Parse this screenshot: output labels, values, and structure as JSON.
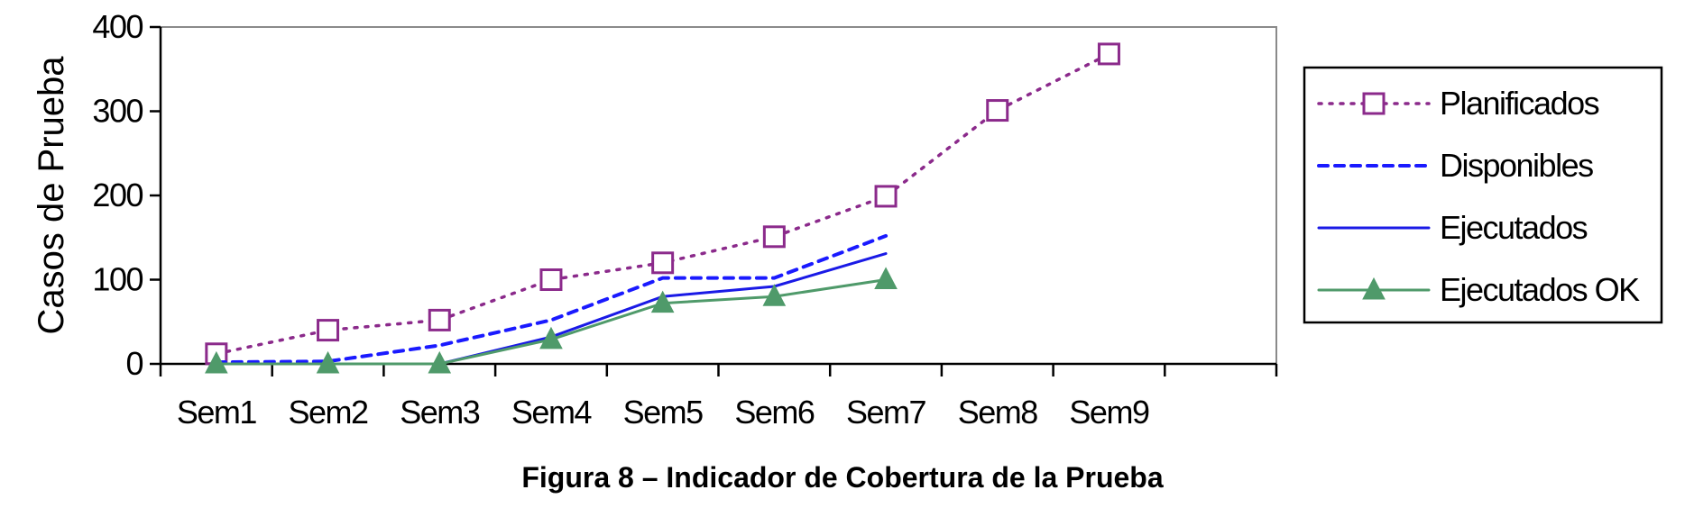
{
  "caption": "Figura 8 – Indicador de Cobertura de la Prueba",
  "chart_data": {
    "type": "line",
    "categories": [
      "Sem1",
      "Sem2",
      "Sem3",
      "Sem4",
      "Sem5",
      "Sem6",
      "Sem7",
      "Sem8",
      "Sem9"
    ],
    "category_slots": 10,
    "ylabel": "Casos de Prueba",
    "xlabel": "",
    "ylim": [
      0,
      400
    ],
    "yticks": [
      0,
      100,
      200,
      300,
      400
    ],
    "grid": false,
    "legend_position": "right",
    "series": [
      {
        "name": "Planificados",
        "color": "#8b2a8b",
        "dash": "dotted",
        "marker": "square",
        "values": [
          12,
          40,
          52,
          100,
          120,
          151,
          199,
          301,
          368
        ]
      },
      {
        "name": "Disponibles",
        "color": "#1a1aff",
        "dash": "dashed",
        "marker": "none",
        "values": [
          2,
          3,
          22,
          52,
          102,
          102,
          152,
          null,
          null
        ]
      },
      {
        "name": "Ejecutados",
        "color": "#1a1ae6",
        "dash": "solid",
        "marker": "none",
        "values": [
          0,
          0,
          0,
          32,
          80,
          92,
          131,
          null,
          null
        ]
      },
      {
        "name": "Ejecutados OK",
        "color": "#4f9a6a",
        "dash": "solid",
        "marker": "triangle",
        "values": [
          0,
          0,
          0,
          29,
          72,
          80,
          100,
          null,
          null
        ]
      }
    ]
  }
}
